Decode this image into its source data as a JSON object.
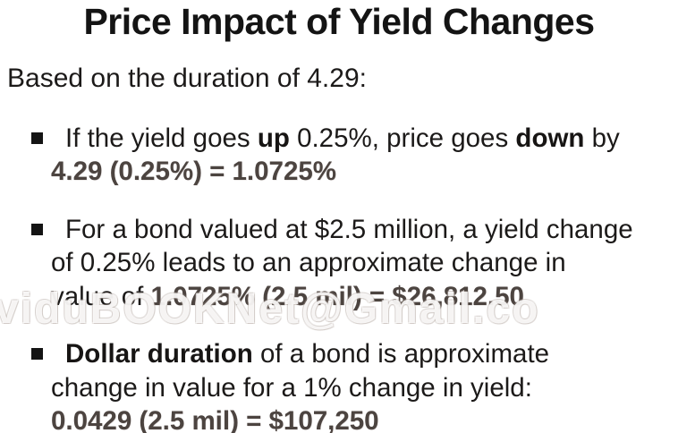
{
  "slide": {
    "title": "Price Impact of Yield Changes",
    "subtitle": "Based on the duration of 4.29:",
    "duration_value": "4.29",
    "watermark": "viduBOOKNet@Gmail.co",
    "bullets": [
      {
        "lines": [
          {
            "segments": [
              {
                "t": "If the yield goes ",
                "s": "n"
              },
              {
                "t": "up",
                "s": "b"
              },
              {
                "t": " 0.25%, price goes ",
                "s": "n"
              },
              {
                "t": "down",
                "s": "b"
              },
              {
                "t": " by",
                "s": "n"
              }
            ]
          },
          {
            "segments": [
              {
                "t": "4.29 (0.25%) = 1.0725%",
                "s": "f"
              }
            ]
          }
        ]
      },
      {
        "lines": [
          {
            "segments": [
              {
                "t": "For a bond valued at $2.5 million, a yield change",
                "s": "n"
              }
            ]
          },
          {
            "segments": [
              {
                "t": "of 0.25% leads to an approximate change in",
                "s": "n"
              }
            ]
          },
          {
            "segments": [
              {
                "t": "value of ",
                "s": "n"
              },
              {
                "t": "1.0725% (2.5 mil) = $26,812.50",
                "s": "f"
              }
            ]
          }
        ]
      },
      {
        "lines": [
          {
            "segments": [
              {
                "t": "Dollar duration",
                "s": "b"
              },
              {
                "t": " of a bond is approximate",
                "s": "n"
              }
            ]
          },
          {
            "segments": [
              {
                "t": "change in value for a 1% change in yield:",
                "s": "n"
              }
            ]
          },
          {
            "segments": [
              {
                "t": "0.0429 (2.5 mil) = $107,250",
                "s": "f"
              }
            ]
          }
        ]
      }
    ],
    "colors": {
      "background": "#ffffff",
      "text": "#1c1a19",
      "formula_text": "#4c4440",
      "bullet_marker": "#141414"
    }
  }
}
